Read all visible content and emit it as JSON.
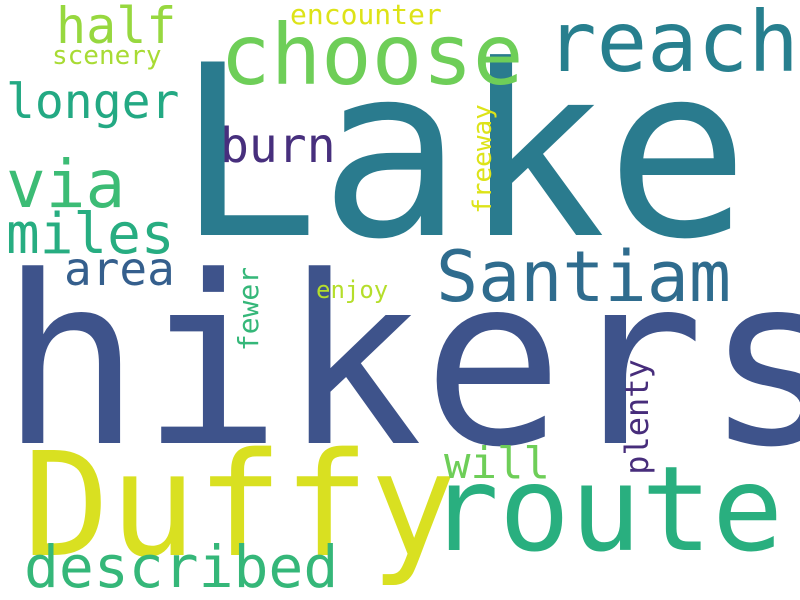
{
  "word_cloud": {
    "background": "#ffffff",
    "words": [
      {
        "text": "Lake",
        "color": "#2a7b8e",
        "orientation": "horizontal"
      },
      {
        "text": "hikers",
        "color": "#3e538b",
        "orientation": "horizontal"
      },
      {
        "text": "Duffy",
        "color": "#d9e021",
        "orientation": "horizontal"
      },
      {
        "text": "route",
        "color": "#29af7f",
        "orientation": "horizontal"
      },
      {
        "text": "choose",
        "color": "#6ece58",
        "orientation": "horizontal"
      },
      {
        "text": "reach",
        "color": "#277f8e",
        "orientation": "horizontal"
      },
      {
        "text": "Santiam",
        "color": "#2f6c8e",
        "orientation": "horizontal"
      },
      {
        "text": "described",
        "color": "#35b779",
        "orientation": "horizontal"
      },
      {
        "text": "via",
        "color": "#3cbc75",
        "orientation": "horizontal"
      },
      {
        "text": "miles",
        "color": "#27ad81",
        "orientation": "horizontal"
      },
      {
        "text": "longer",
        "color": "#23a983",
        "orientation": "horizontal"
      },
      {
        "text": "half",
        "color": "#97d83f",
        "orientation": "horizontal"
      },
      {
        "text": "burn",
        "color": "#472f7d",
        "orientation": "horizontal"
      },
      {
        "text": "area",
        "color": "#355f8d",
        "orientation": "horizontal"
      },
      {
        "text": "will",
        "color": "#6ece58",
        "orientation": "horizontal"
      },
      {
        "text": "encounter",
        "color": "#dde318",
        "orientation": "horizontal"
      },
      {
        "text": "scenery",
        "color": "#a8db34",
        "orientation": "horizontal"
      },
      {
        "text": "enjoy",
        "color": "#b5de2b",
        "orientation": "horizontal"
      },
      {
        "text": "freeway",
        "color": "#dde318",
        "orientation": "vertical"
      },
      {
        "text": "fewer",
        "color": "#35b779",
        "orientation": "vertical"
      },
      {
        "text": "plenty",
        "color": "#472d7b",
        "orientation": "vertical"
      }
    ]
  }
}
